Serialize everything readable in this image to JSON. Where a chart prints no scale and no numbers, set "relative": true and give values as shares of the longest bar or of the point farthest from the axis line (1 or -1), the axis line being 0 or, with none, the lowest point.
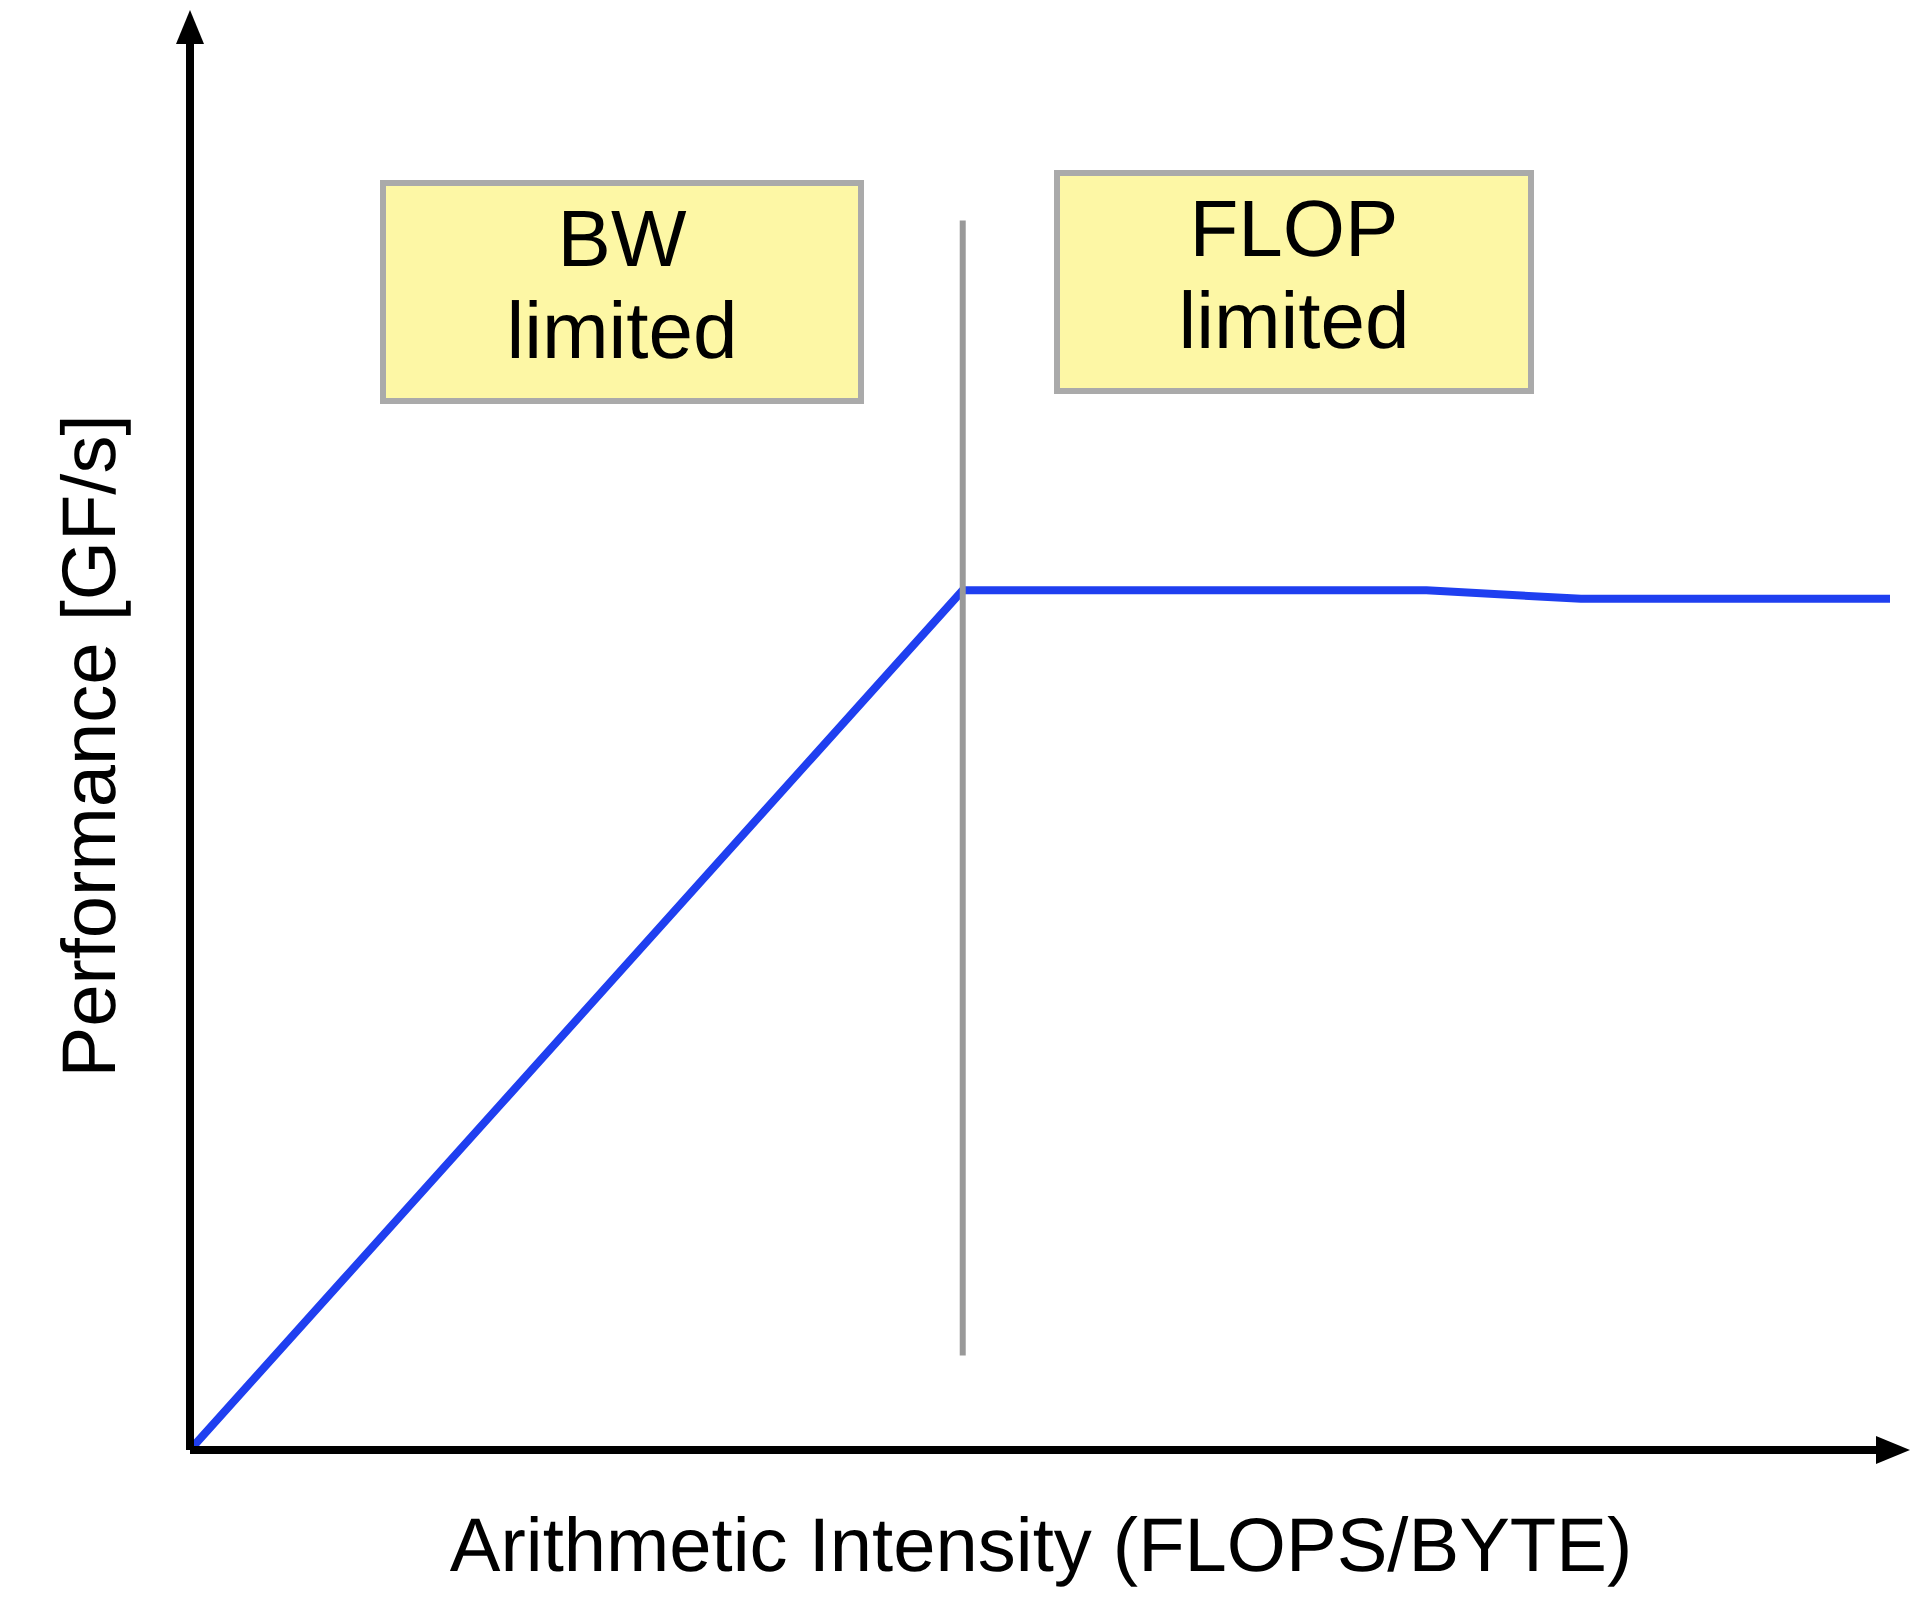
{
  "chart_data": {
    "type": "line",
    "relative": true,
    "xlabel": "Arithmetic Intensity (FLOPS/BYTE)",
    "ylabel": "Performance [GF/s]",
    "categories": [
      null,
      null,
      null,
      null,
      null,
      null,
      null,
      null,
      null,
      null,
      null,
      null
    ],
    "series": [
      {
        "color": "#1f3ff0",
        "values": [
          0,
          0.2,
          0.4,
          0.6,
          0.8,
          1,
          1,
          1,
          1,
          0.99,
          0.99,
          0.99
        ]
      }
    ],
    "annotations": [
      "BW\nlimited",
      "FLOP\nlimited"
    ],
    "grid": false,
    "tick_labels": false,
    "marker": "none",
    "line_style": "solid"
  }
}
